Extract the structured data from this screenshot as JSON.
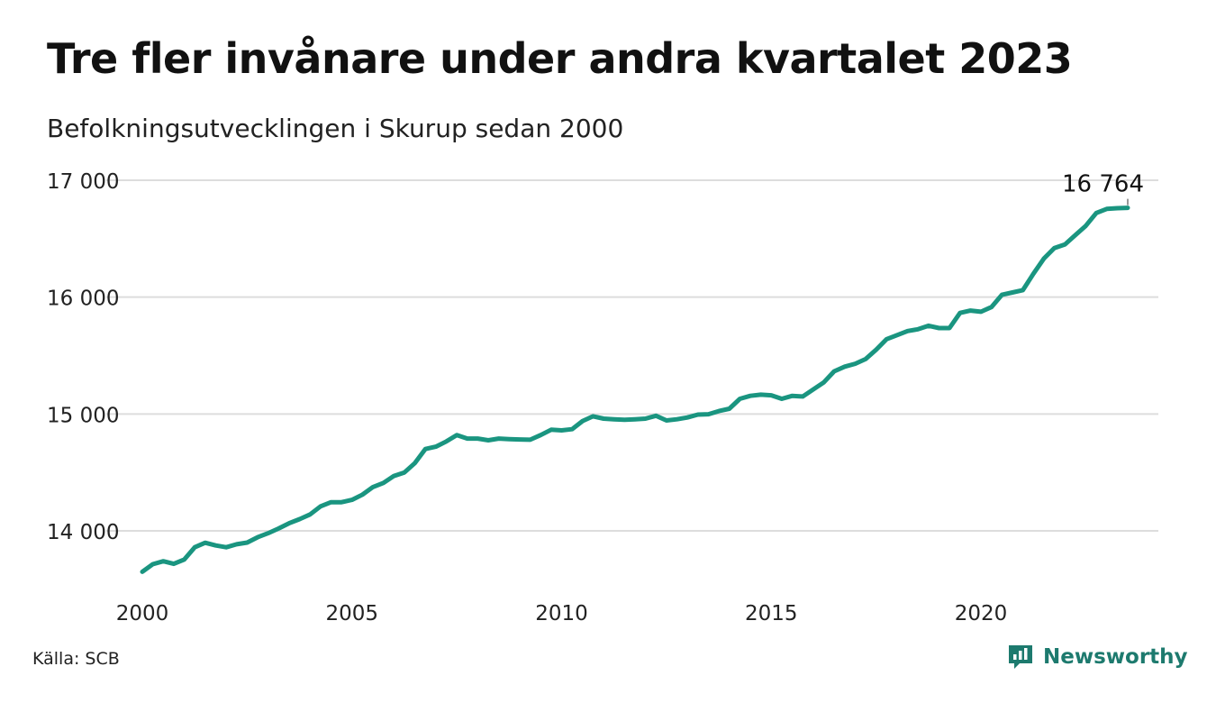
{
  "header": {
    "title": "Tre fler invånare under andra kvartalet 2023",
    "subtitle": "Befolkningsutvecklingen i Skurup sedan 2000"
  },
  "footer": {
    "source": "Källa: SCB",
    "brand": "Newsworthy"
  },
  "colors": {
    "line": "#1a9580",
    "grid": "#dddddd",
    "brand": "#1d7a6e"
  },
  "chart_data": {
    "type": "line",
    "title": "Tre fler invånare under andra kvartalet 2023",
    "subtitle": "Befolkningsutvecklingen i Skurup sedan 2000",
    "xlabel": "",
    "ylabel": "",
    "x_ticks": [
      2000,
      2005,
      2010,
      2015,
      2020
    ],
    "x_tick_labels": [
      "2000",
      "2005",
      "2010",
      "2015",
      "2020"
    ],
    "y_ticks": [
      14000,
      15000,
      16000,
      17000
    ],
    "y_tick_labels": [
      "14 000",
      "15 000",
      "16 000",
      "17 000"
    ],
    "xlim": [
      2000,
      2023.5
    ],
    "ylim": [
      13550,
      17100
    ],
    "grid": true,
    "end_label": "16 764",
    "series": [
      {
        "x_start": 2000,
        "x_step": 0.25,
        "values": [
          13650,
          13715,
          13740,
          13718,
          13755,
          13860,
          13898,
          13875,
          13860,
          13885,
          13900,
          13945,
          13980,
          14020,
          14065,
          14100,
          14140,
          14210,
          14245,
          14245,
          14265,
          14310,
          14375,
          14410,
          14470,
          14500,
          14580,
          14700,
          14720,
          14765,
          14820,
          14790,
          14790,
          14775,
          14790,
          14785,
          14782,
          14780,
          14820,
          14865,
          14860,
          14870,
          14940,
          14980,
          14960,
          14955,
          14950,
          14955,
          14960,
          14985,
          14945,
          14955,
          14970,
          14995,
          14998,
          15025,
          15045,
          15130,
          15155,
          15165,
          15160,
          15130,
          15155,
          15150,
          15210,
          15270,
          15365,
          15405,
          15430,
          15470,
          15550,
          15640,
          15675,
          15710,
          15725,
          15755,
          15735,
          15735,
          15865,
          15885,
          15875,
          15915,
          16020,
          16040,
          16060,
          16200,
          16330,
          16420,
          16450,
          16530,
          16610,
          16720,
          16755,
          16761,
          16764
        ]
      }
    ]
  }
}
